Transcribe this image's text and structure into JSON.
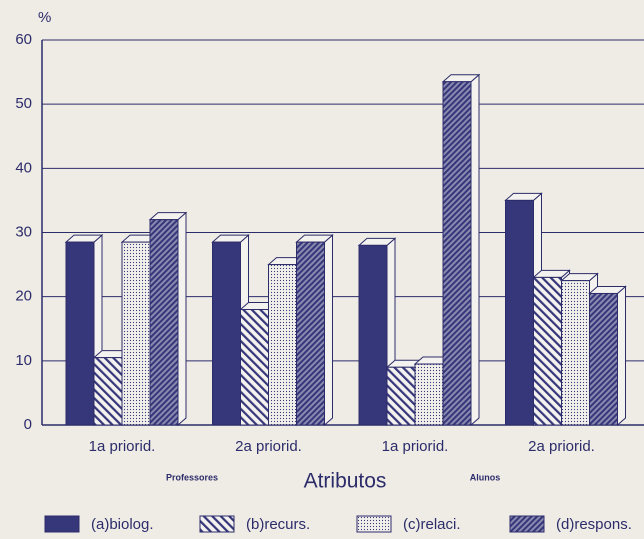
{
  "chart_data": {
    "type": "bar3d",
    "y_unit": "%",
    "xlabel": "Atributos",
    "groups": [
      "Professores",
      "Alunos"
    ],
    "categories": [
      "1a priorid.",
      "2a priorid.",
      "1a priorid.",
      "2a priorid."
    ],
    "series": [
      {
        "name": "(a)biolog.",
        "color": "#36367a",
        "pattern": "solid",
        "values": [
          28.5,
          28.5,
          28,
          35
        ]
      },
      {
        "name": "(b)recurs.",
        "color": "#36367a",
        "pattern": "hatch-back",
        "values": [
          10.5,
          18,
          9,
          23
        ]
      },
      {
        "name": "(c)relaci.",
        "color": "#36367a",
        "pattern": "dots",
        "values": [
          28.5,
          25,
          9.5,
          22.5
        ]
      },
      {
        "name": "(d)respons.",
        "color": "#36367a",
        "pattern": "hatch-forward",
        "values": [
          32,
          28.5,
          53.5,
          20.5
        ]
      }
    ],
    "ylim": [
      0,
      60
    ],
    "yticks": [
      0,
      10,
      20,
      30,
      40,
      50,
      60
    ],
    "grid": true,
    "legend": "bottom"
  }
}
